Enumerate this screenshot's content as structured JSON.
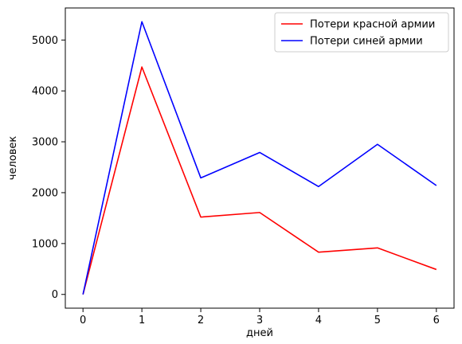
{
  "chart_data": {
    "type": "line",
    "x": [
      0,
      1,
      2,
      3,
      4,
      5,
      6
    ],
    "series": [
      {
        "name": "Потери красной армии",
        "color": "#ff0000",
        "values": [
          0,
          4470,
          1520,
          1610,
          830,
          915,
          490
        ]
      },
      {
        "name": "Потери синей армии",
        "color": "#0000ff",
        "values": [
          0,
          5360,
          2290,
          2790,
          2120,
          2950,
          2140
        ]
      }
    ],
    "xlabel": "дней",
    "ylabel": "человек",
    "xlim": [
      -0.3,
      6.3
    ],
    "ylim": [
      -270,
      5630
    ],
    "xticks": [
      0,
      1,
      2,
      3,
      4,
      5,
      6
    ],
    "yticks": [
      0,
      1000,
      2000,
      3000,
      4000,
      5000
    ],
    "grid": false,
    "legend_position": "top-right"
  }
}
